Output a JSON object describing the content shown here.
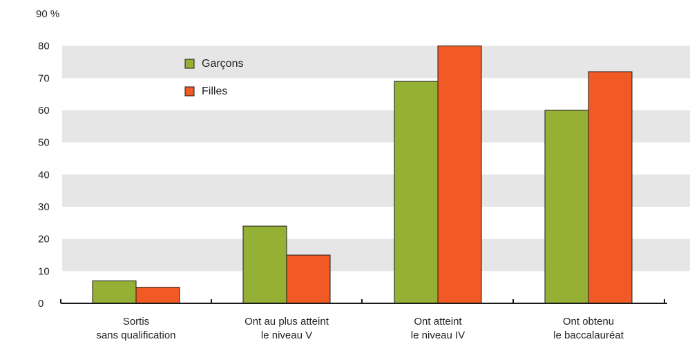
{
  "chart_data": {
    "type": "bar",
    "y_unit": "%",
    "ylim": [
      0,
      90
    ],
    "yticks": [
      0,
      10,
      20,
      30,
      40,
      50,
      60,
      70,
      80,
      90
    ],
    "categories": [
      [
        "Sortis",
        "sans qualification"
      ],
      [
        "Ont au plus atteint",
        "le niveau V"
      ],
      [
        "Ont atteint",
        "le niveau IV"
      ],
      [
        "Ont obtenu",
        "le baccalauréat"
      ]
    ],
    "series": [
      {
        "name": "Garçons",
        "color": "#94b035",
        "values": [
          7,
          24,
          69,
          60
        ]
      },
      {
        "name": "Filles",
        "color": "#f15a24",
        "values": [
          5,
          15,
          80,
          72
        ]
      }
    ],
    "grid": "alternating horizontal bands",
    "band_color": "#e6e6e6",
    "legend_position": "top-left"
  }
}
